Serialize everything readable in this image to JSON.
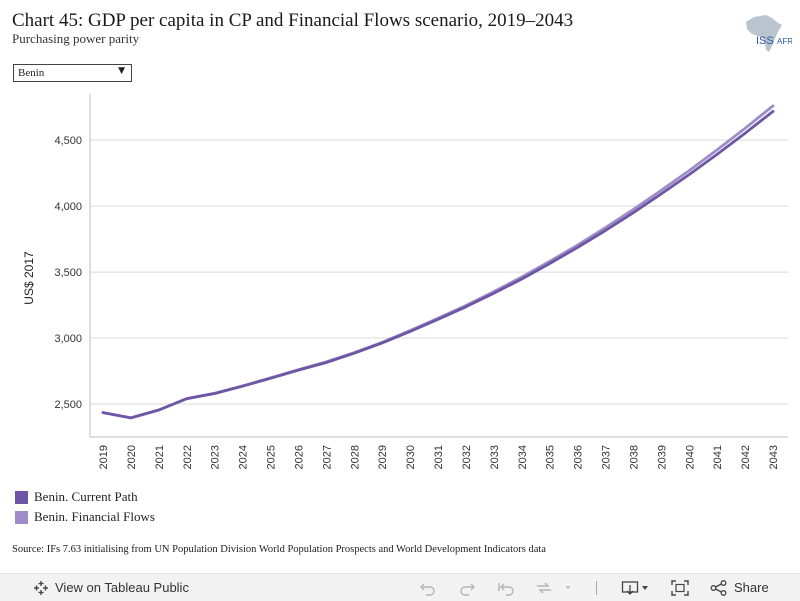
{
  "header": {
    "title": "Chart 45: GDP per capita in CP and Financial Flows scenario, 2019–2043",
    "subtitle": "Purchasing power parity"
  },
  "logo": {
    "text": "ISS",
    "text_suffix": "AFRICA",
    "icon": "africa-map-icon"
  },
  "filter": {
    "selected": "Benin"
  },
  "legend": {
    "items": [
      {
        "label": "Benin. Current Path",
        "color": "#6f56a5"
      },
      {
        "label": "Benin. Financial Flows",
        "color": "#9d8cc8"
      }
    ]
  },
  "source": "Source: IFs 7.63 initialising from UN Population Division World Population Prospects and World Development Indicators data",
  "toolbar": {
    "view_label": "View on Tableau Public",
    "share_label": "Share",
    "icons": [
      "tableau-icon",
      "undo-icon",
      "redo-icon",
      "revert-icon",
      "refresh-icon",
      "download-icon",
      "fullscreen-icon",
      "share-icon"
    ]
  },
  "chart_data": {
    "type": "line",
    "ylabel": "US$ 2017",
    "xlabel": "",
    "ylim": [
      2250,
      4850
    ],
    "yticks": [
      2500,
      3000,
      3500,
      4000,
      4500
    ],
    "ytick_labels": [
      "2,500",
      "3,000",
      "3,500",
      "4,000",
      "4,500"
    ],
    "grid": "horizontal",
    "x": [
      "2019",
      "2020",
      "2021",
      "2022",
      "2023",
      "2024",
      "2025",
      "2026",
      "2027",
      "2028",
      "2029",
      "2030",
      "2031",
      "2032",
      "2033",
      "2034",
      "2035",
      "2036",
      "2037",
      "2038",
      "2039",
      "2040",
      "2041",
      "2042",
      "2043"
    ],
    "series": [
      {
        "name": "Benin. Current Path",
        "color": "#6f56a5",
        "values": [
          2435,
          2395,
          2455,
          2540,
          2580,
          2635,
          2695,
          2757,
          2815,
          2885,
          2963,
          3050,
          3142,
          3237,
          3340,
          3448,
          3565,
          3687,
          3815,
          3950,
          4093,
          4240,
          4393,
          4553,
          4718
        ]
      },
      {
        "name": "Benin. Financial Flows",
        "color": "#9d8cc8",
        "values": [
          2435,
          2395,
          2455,
          2542,
          2582,
          2637,
          2698,
          2760,
          2820,
          2890,
          2968,
          3057,
          3150,
          3247,
          3352,
          3463,
          3582,
          3705,
          3837,
          3975,
          4120,
          4270,
          4428,
          4590,
          4760
        ]
      }
    ]
  }
}
